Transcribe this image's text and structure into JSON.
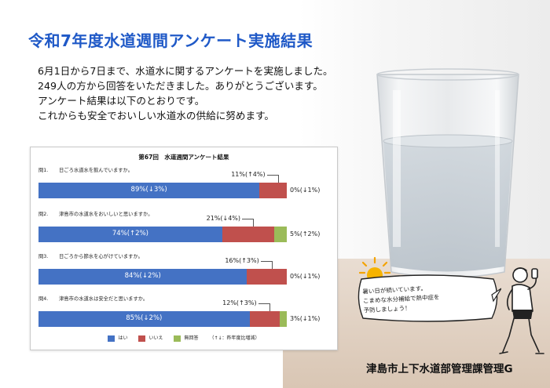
{
  "title": "令和7年度水道週間アンケート実施結果",
  "intro": [
    "6月1日から7日まで、水道水に関するアンケートを実施しました。",
    "249人の方から回答をいただきました。ありがとうございます。",
    "アンケート結果は以下のとおりです。",
    "これからも安全でおいしい水道水の供給に努めます。"
  ],
  "chart_data": {
    "type": "bar",
    "title": "第67回　水道週間アンケート結果",
    "orientation": "horizontal-stacked-100",
    "questions": [
      {
        "num": "問1.",
        "text": "日ごろ水道水を飲んでいますか。",
        "yes": 89,
        "no": 11,
        "na": 0,
        "yes_label": "89%(↓3%)",
        "no_label": "11%(↑4%)",
        "na_label": "0%(↓1%)"
      },
      {
        "num": "問2.",
        "text": "津島市の水道水をおいしいと思いますか。",
        "yes": 74,
        "no": 21,
        "na": 5,
        "yes_label": "74%(↑2%)",
        "no_label": "21%(↓4%)",
        "na_label": "5%(↑2%)"
      },
      {
        "num": "問3.",
        "text": "日ごろから節水を心がけていますか。",
        "yes": 84,
        "no": 16,
        "na": 0,
        "yes_label": "84%(↓2%)",
        "no_label": "16%(↑3%)",
        "na_label": "0%(↓1%)"
      },
      {
        "num": "問4.",
        "text": "津島市の水道水は安全だと思いますか。",
        "yes": 85,
        "no": 12,
        "na": 3,
        "yes_label": "85%(↓2%)",
        "no_label": "12%(↑3%)",
        "na_label": "3%(↓1%)"
      }
    ],
    "legend": [
      {
        "label": "はい",
        "color": "#4472c4"
      },
      {
        "label": "いいえ",
        "color": "#c0504d"
      },
      {
        "label": "無回答",
        "color": "#9bbb59"
      }
    ],
    "legend_note": "（↑↓：昨年度比増減）"
  },
  "bubble": [
    "暑い日が続いています。",
    "こまめな水分補給で熱中症を",
    "予防しましょう！"
  ],
  "footer": "津島市上下水道部管理課管理G"
}
